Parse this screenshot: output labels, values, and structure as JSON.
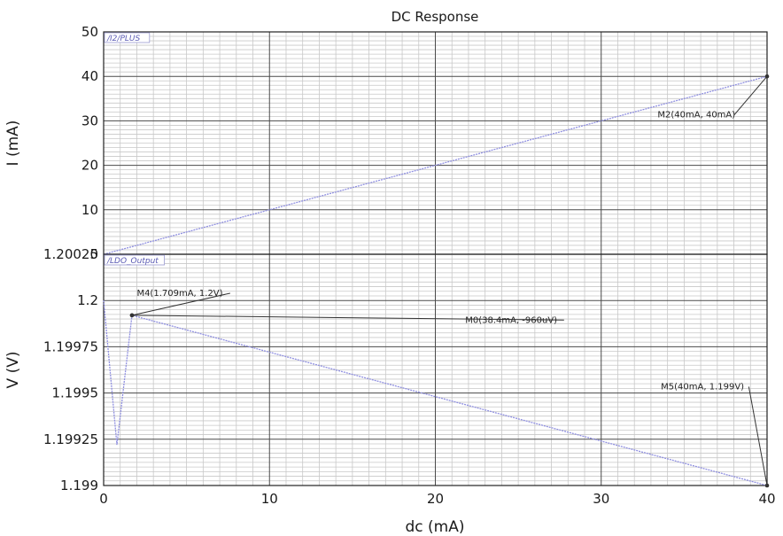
{
  "colors": {
    "trace": "#8f8fe0",
    "grid_major": "#4a4a4a",
    "grid_minor": "#c8c8c8",
    "marker_line": "#333333",
    "trace_tag": "#5b5bb5"
  },
  "chart_data": {
    "type": "line",
    "title": "DC Response",
    "xlabel": "dc (mA)",
    "xlim": [
      0,
      40
    ],
    "x_ticks": [
      "0",
      "10",
      "20",
      "30",
      "40"
    ],
    "x_tick_values": [
      0,
      10,
      20,
      30,
      40
    ],
    "grid": true,
    "panels": [
      {
        "ylabel": "I (mA)",
        "ylim": [
          0,
          50
        ],
        "y_ticks": [
          "50",
          "40",
          "30",
          "20",
          "10",
          "0"
        ],
        "y_tick_values": [
          50,
          40,
          30,
          20,
          10,
          0
        ],
        "series": [
          {
            "name": "/I2/PLUS",
            "x": [
              0,
              40
            ],
            "y": [
              0,
              40
            ]
          }
        ],
        "markers": [
          {
            "label": "M2(40mA, 40mA)",
            "x": 40,
            "y": 40,
            "label_x": 33.4,
            "label_y": 30.8
          }
        ]
      },
      {
        "ylabel": "V (V)",
        "ylim": [
          1.199,
          1.20025
        ],
        "y_ticks": [
          "1.20025",
          "1.2",
          "1.19975",
          "1.1995",
          "1.19925",
          "1.199"
        ],
        "y_tick_values": [
          1.20025,
          1.2,
          1.19975,
          1.1995,
          1.19925,
          1.199
        ],
        "series": [
          {
            "name": "/LDO_Output",
            "x": [
              0,
              0.8,
              1.709,
              40
            ],
            "y": [
              1.2,
              1.19922,
              1.19992,
              1.199
            ]
          }
        ],
        "markers": [
          {
            "label": "M4(1.709mA, 1.2V)",
            "x": 1.709,
            "y": 1.19992,
            "label_x": 2.0,
            "label_y": 1.200025
          },
          {
            "label": "M0(38.4mA, -960uV)",
            "x": 1.709,
            "y": 1.19992,
            "label_x": 21.8,
            "label_y": 1.19988
          },
          {
            "label": "M5(40mA, 1.199V)",
            "x": 40,
            "y": 1.199,
            "label_x": 33.6,
            "label_y": 1.19952
          }
        ]
      }
    ]
  }
}
